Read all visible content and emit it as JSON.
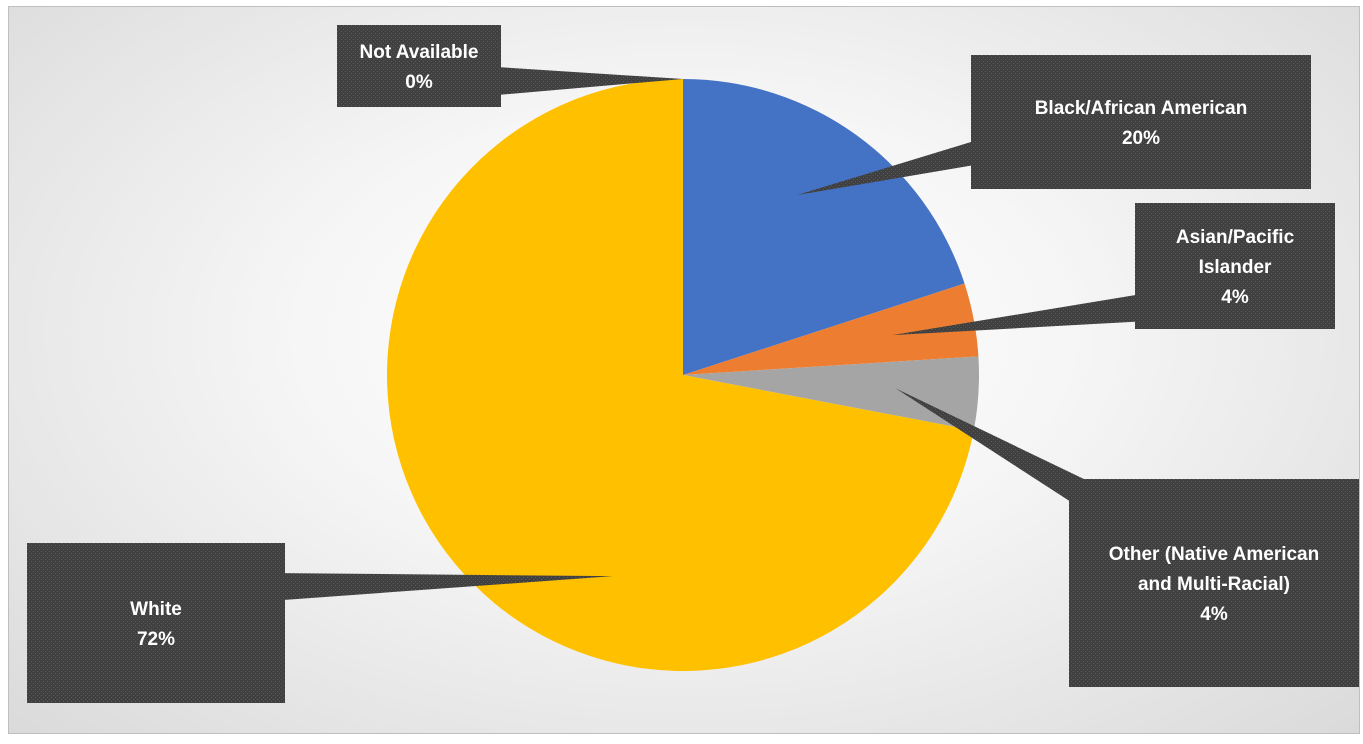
{
  "chart_data": {
    "type": "pie",
    "title": "",
    "slices": [
      {
        "label_lines": [
          "Black/African American"
        ],
        "percent_label": "20%",
        "value": 20,
        "color": "#4472C4"
      },
      {
        "label_lines": [
          "Asian/Pacific",
          "Islander"
        ],
        "percent_label": "4%",
        "value": 4,
        "color": "#ED7D31"
      },
      {
        "label_lines": [
          "Other (Native American",
          "and Multi-Racial)"
        ],
        "percent_label": "4%",
        "value": 4,
        "color": "#A5A5A5"
      },
      {
        "label_lines": [
          "White"
        ],
        "percent_label": "72%",
        "value": 72,
        "color": "#FFC000"
      },
      {
        "label_lines": [
          "Not Available"
        ],
        "percent_label": "0%",
        "value": 0,
        "color": "#5B9BD5"
      }
    ],
    "label_style": "callout",
    "callout_color": "#404040",
    "legend": "none"
  }
}
